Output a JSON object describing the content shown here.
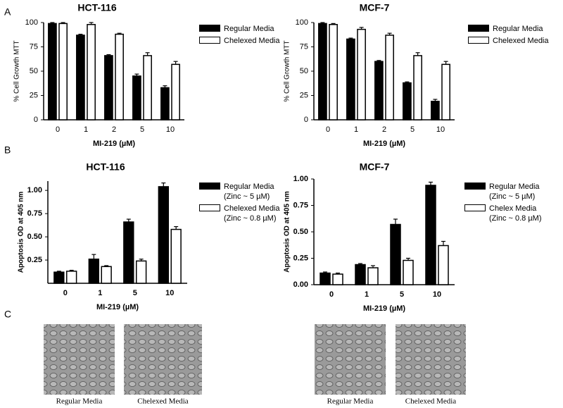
{
  "panel_labels": [
    "A",
    "B",
    "C"
  ],
  "chart_data": [
    {
      "type": "bar",
      "title": "HCT-116",
      "xlabel": "MI-219 (µM)",
      "ylabel": "% Cell Growth MTT",
      "categories": [
        "0",
        "1",
        "2",
        "5",
        "10"
      ],
      "series": [
        {
          "name": "Regular Media",
          "color": "#000000",
          "values": [
            99,
            87,
            66,
            45,
            33
          ],
          "errors": [
            1,
            1,
            1,
            2,
            2
          ]
        },
        {
          "name": "Chelexed  Media",
          "color": "#ffffff",
          "values": [
            99,
            98,
            88,
            66,
            57
          ],
          "errors": [
            1,
            2,
            1,
            3,
            3
          ]
        }
      ],
      "ylim": [
        0,
        100
      ],
      "yticks": [
        0,
        25,
        50,
        75,
        100
      ]
    },
    {
      "type": "bar",
      "title": "MCF-7",
      "xlabel": "MI-219 (µM)",
      "ylabel": "% Cell Growth MTT",
      "categories": [
        "0",
        "1",
        "2",
        "5",
        "10"
      ],
      "series": [
        {
          "name": "Regular Media",
          "color": "#000000",
          "values": [
            99,
            83,
            60,
            38,
            19
          ],
          "errors": [
            1,
            1,
            1,
            1,
            2
          ]
        },
        {
          "name": "Chelexed  Media",
          "color": "#ffffff",
          "values": [
            98,
            93,
            87,
            66,
            57
          ],
          "errors": [
            1,
            2,
            2,
            3,
            3
          ]
        }
      ],
      "ylim": [
        0,
        100
      ],
      "yticks": [
        0,
        25,
        50,
        75,
        100
      ]
    },
    {
      "type": "bar",
      "title": "HCT-116",
      "xlabel": "MI-219 (µM)",
      "ylabel": "Apoptosis OD at 405 nm",
      "categories": [
        "0",
        "1",
        "5",
        "10"
      ],
      "series": [
        {
          "name": "Regular Media (Zinc ~ 5 µM)",
          "color": "#000000",
          "values": [
            0.12,
            0.26,
            0.66,
            1.04
          ],
          "errors": [
            0.01,
            0.05,
            0.03,
            0.04
          ]
        },
        {
          "name": "Chelexed Media (Zinc ~ 0.8 µM)",
          "color": "#ffffff",
          "values": [
            0.13,
            0.18,
            0.24,
            0.58
          ],
          "errors": [
            0.01,
            0.01,
            0.02,
            0.03
          ]
        }
      ],
      "ylim": [
        0,
        1.1
      ],
      "yticks": [
        {
          "value": 0.25,
          "label": "0.25"
        },
        {
          "value": 0.5,
          "label": "0.50"
        },
        {
          "value": 0.75,
          "label": "0.75"
        },
        {
          "value": 1,
          "label": "1.00"
        }
      ]
    },
    {
      "type": "bar",
      "title": "MCF-7",
      "xlabel": "MI-219 (µM)",
      "ylabel": "Apoptosis OD at 405 nm",
      "categories": [
        "0",
        "1",
        "5",
        "10"
      ],
      "series": [
        {
          "name": "Regular Media (Zinc ~ 5 µM)",
          "color": "#000000",
          "values": [
            0.11,
            0.19,
            0.57,
            0.94
          ],
          "errors": [
            0.01,
            0.01,
            0.05,
            0.03
          ]
        },
        {
          "name": "Chelex Media (Zinc ~ 0.8 µM)",
          "color": "#ffffff",
          "values": [
            0.1,
            0.16,
            0.23,
            0.37
          ],
          "errors": [
            0.01,
            0.02,
            0.02,
            0.04
          ]
        }
      ],
      "ylim": [
        0,
        1
      ],
      "yticks": [
        {
          "value": 0,
          "label": "0.00"
        },
        {
          "value": 0.25,
          "label": "0.25"
        },
        {
          "value": 0.5,
          "label": "0.50"
        },
        {
          "value": 0.75,
          "label": "0.75"
        },
        {
          "value": 1,
          "label": "1.00"
        }
      ]
    }
  ],
  "micrographs": [
    {
      "caption": "Regular Media"
    },
    {
      "caption": "Chelexed Media"
    },
    {
      "caption": "Regular Media"
    },
    {
      "caption": "Chelexed Media"
    }
  ]
}
